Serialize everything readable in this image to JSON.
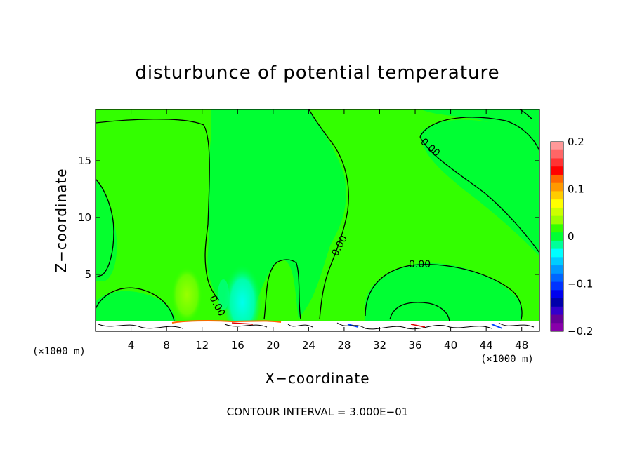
{
  "chart_data": {
    "type": "contour",
    "title": "disturbunce of potential temperature",
    "xlabel": "X−coordinate",
    "ylabel": "Z−coordinate",
    "x_unit_left": "(×1000 m)",
    "x_unit_right": "(×1000 m)",
    "xlim": [
      0,
      50
    ],
    "ylim": [
      0,
      19.5
    ],
    "x_ticks": [
      4,
      8,
      12,
      16,
      20,
      24,
      28,
      32,
      36,
      40,
      44,
      48
    ],
    "y_ticks": [
      5,
      10,
      15
    ],
    "contour_interval_text": "CONTOUR INTERVAL =  3.000E−01",
    "contour_labels": [
      "0.00",
      "0.00",
      "0.00",
      "0.00"
    ],
    "colorbar": {
      "min": -0.2,
      "max": 0.2,
      "tick_labels": [
        "0.2",
        "0.1",
        "0",
        "−0.1",
        "−0.2"
      ],
      "tick_values": [
        0.2,
        0.1,
        0,
        -0.1,
        -0.2
      ],
      "colors": [
        "#ff9999",
        "#ff6666",
        "#ff3333",
        "#ff0000",
        "#ff6600",
        "#ff9900",
        "#ffcc00",
        "#ffff00",
        "#ccff00",
        "#99ff00",
        "#33ff00",
        "#00ff33",
        "#00ff99",
        "#00ffff",
        "#00ccff",
        "#0099ff",
        "#0066ff",
        "#0033ff",
        "#0000ee",
        "#0000aa",
        "#3300cc",
        "#660099",
        "#8800aa"
      ]
    },
    "background_level_color": "#00ff33",
    "grid": false,
    "legend": "right"
  }
}
